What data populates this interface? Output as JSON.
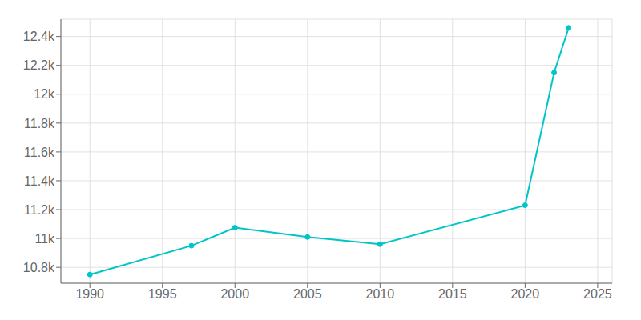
{
  "chart_data": {
    "type": "line",
    "x": [
      1990,
      1997,
      2000,
      2005,
      2010,
      2020,
      2022,
      2023
    ],
    "values": [
      10750,
      10950,
      11075,
      11010,
      10960,
      11230,
      12150,
      12460
    ],
    "color": "#00c5c8",
    "marker": "circle",
    "xlim": [
      1988,
      2026
    ],
    "ylim": [
      10690,
      12520
    ],
    "xticks": [
      1990,
      1995,
      2000,
      2005,
      2010,
      2015,
      2020,
      2025
    ],
    "yticks": [
      {
        "value": 10800,
        "label": "10.8k"
      },
      {
        "value": 11000,
        "label": "11k"
      },
      {
        "value": 11200,
        "label": "11.2k"
      },
      {
        "value": 11400,
        "label": "11.4k"
      },
      {
        "value": 11600,
        "label": "11.6k"
      },
      {
        "value": 11800,
        "label": "11.8k"
      },
      {
        "value": 12000,
        "label": "12k"
      },
      {
        "value": 12200,
        "label": "12.2k"
      },
      {
        "value": 12400,
        "label": "12.4k"
      }
    ],
    "grid": true
  }
}
